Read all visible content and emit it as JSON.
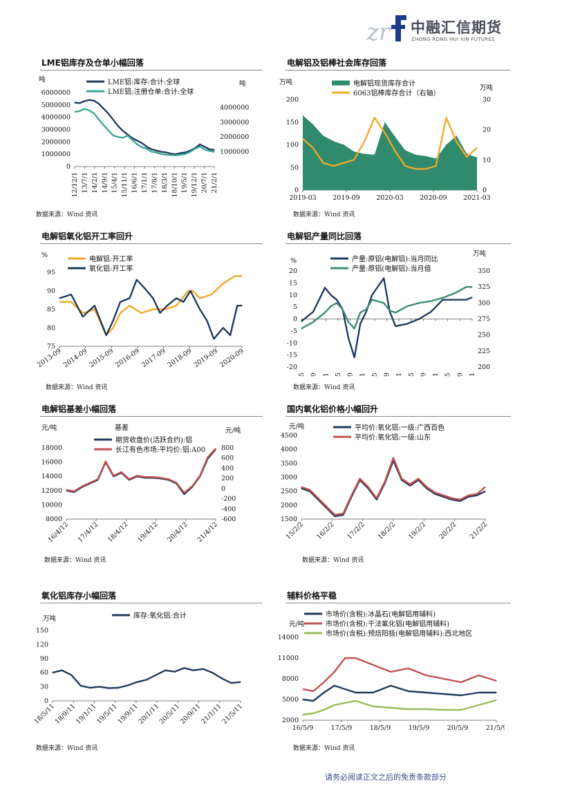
{
  "header": {
    "logo_cn": "中融汇信期货",
    "logo_en": "ZHONG RONG HUI XIN FUTURES"
  },
  "footer": {
    "text": "请务必阅读正文之后的免责条款部分"
  },
  "colors": {
    "navy": "#1f3a5c",
    "teal": "#3a8c74",
    "orange": "#f0a82a",
    "red": "#c0504d",
    "green": "#9bbb59"
  },
  "panels": {
    "p1": {
      "title": "LME铝库存及仓单小幅回落",
      "source": "数据来源：Wind 资讯"
    },
    "p2": {
      "title": "电解铝及铝棒社会库存回落",
      "source": "数据来源：Wind 资讯"
    },
    "p3": {
      "title": "电解铝氧化铝开工率回升",
      "source": "数据来源：Wind 资讯"
    },
    "p4": {
      "title": "电解铝产量同比回落",
      "source": "数据来源：Wind 资讯"
    },
    "p5": {
      "title": "电解铝基差小幅回落",
      "source": "数据来源：Wind 资讯"
    },
    "p6": {
      "title": "国内氧化铝价格小幅回升",
      "source": "数据来源：Wind 资讯"
    },
    "p7": {
      "title": "氧化铝库存小幅回落",
      "source": "数据来源：Wind 资讯"
    },
    "p8": {
      "title": "辅料价格平稳",
      "source": "数据来源：Wind 资讯"
    }
  },
  "chart_data": [
    {
      "id": "c1",
      "type": "line",
      "ylabel": "吨",
      "ylabel_right": "吨",
      "ylim": [
        0,
        6000000
      ],
      "yticks": [
        0,
        1000000,
        2000000,
        3000000,
        4000000,
        5000000,
        6000000
      ],
      "ylim_right": [
        0,
        5000000
      ],
      "yticks_right": [
        1000000,
        2000000,
        3000000,
        4000000
      ],
      "xticks": [
        "12/12/1",
        "13/7/1",
        "14/2/1",
        "14/9/1",
        "15/4/1",
        "15/11/1",
        "16/6/1",
        "17/1/1",
        "17/8/1",
        "18/3/1",
        "18/10/1",
        "19/5/1",
        "19/12/1",
        "20/7/1",
        "21/2/1"
      ],
      "series": [
        {
          "name": "LME铝:库存:合计:全球",
          "axis": "left",
          "color": "#1f3a5c",
          "x": [
            0,
            0.5,
            1,
            1.5,
            2,
            2.5,
            3,
            3.5,
            4,
            4.5,
            5,
            5.5,
            6,
            6.5,
            7,
            7.5,
            8,
            8.5,
            9,
            9.5,
            10,
            10.5,
            11,
            11.5,
            12,
            12.5,
            13,
            13.5,
            14,
            14.5
          ],
          "y": [
            5200000,
            5150000,
            5300000,
            5400000,
            5350000,
            5100000,
            4700000,
            4300000,
            3800000,
            3300000,
            2900000,
            2600000,
            2300000,
            2100000,
            1900000,
            1600000,
            1400000,
            1300000,
            1200000,
            1150000,
            1050000,
            1000000,
            1100000,
            1150000,
            1300000,
            1500000,
            1800000,
            1600000,
            1400000,
            1350000
          ]
        },
        {
          "name": "LME铝:注册仓单:合计:全球",
          "axis": "right",
          "color": "#3aa894",
          "x": [
            0,
            0.5,
            1,
            1.5,
            2,
            2.5,
            3,
            3.5,
            4,
            4.5,
            5,
            5.5,
            6,
            6.5,
            7,
            7.5,
            8,
            8.5,
            9,
            9.5,
            10,
            10.5,
            11,
            11.5,
            12,
            12.5,
            13,
            13.5,
            14,
            14.5
          ],
          "y": [
            3700000,
            3750000,
            3900000,
            3800000,
            3600000,
            3200000,
            2800000,
            2450000,
            2100000,
            2000000,
            1950000,
            2100000,
            1800000,
            1500000,
            1300000,
            1200000,
            1000000,
            950000,
            850000,
            800000,
            780000,
            760000,
            800000,
            850000,
            1000000,
            1200000,
            1350000,
            1150000,
            1050000,
            1000000
          ]
        }
      ]
    },
    {
      "id": "c2",
      "type": "area",
      "ylabel": "万吨",
      "ylabel_right": "万吨",
      "ylim": [
        0,
        200
      ],
      "yticks": [
        0,
        50,
        100,
        150,
        200
      ],
      "ylim_right": [
        0,
        30
      ],
      "yticks_right": [
        0,
        10,
        20,
        30
      ],
      "xticks": [
        "2019-03",
        "2019-09",
        "2020-03",
        "2020-09",
        "2021-03"
      ],
      "series": [
        {
          "name": "电解铝现货库存合计",
          "axis": "left",
          "color": "#2f8a6e",
          "x": [
            0,
            0.3,
            0.6,
            0.9,
            1.2,
            1.5,
            1.8,
            2.1,
            2.4,
            2.7,
            3.0,
            3.3,
            3.6,
            3.9,
            4.2,
            4.5,
            4.8,
            5.1
          ],
          "y": [
            165,
            145,
            120,
            108,
            100,
            85,
            80,
            78,
            150,
            118,
            88,
            78,
            75,
            70,
            100,
            120,
            80,
            72
          ]
        },
        {
          "name": "6063铝棒库存合计（右轴）",
          "axis": "right",
          "color": "#f0a82a",
          "x": [
            0,
            0.3,
            0.6,
            0.9,
            1.2,
            1.5,
            1.8,
            2.1,
            2.4,
            2.7,
            3.0,
            3.3,
            3.6,
            3.9,
            4.2,
            4.5,
            4.8,
            5.1
          ],
          "y": [
            17,
            14,
            9,
            8,
            9,
            10,
            16,
            24,
            19,
            13,
            8,
            7,
            7,
            8,
            24,
            16,
            11,
            14
          ]
        }
      ]
    },
    {
      "id": "c3",
      "type": "line",
      "ylabel": "%",
      "ylim": [
        75,
        95
      ],
      "yticks": [
        75,
        80,
        85,
        90,
        95
      ],
      "xticks": [
        "2013-09",
        "2014-09",
        "2015-09",
        "2016-09",
        "2017-09",
        "2018-09",
        "2019-09",
        "2020-09"
      ],
      "series": [
        {
          "name": "电解铝:开工率",
          "color": "#f0a82a",
          "x": [
            0,
            0.5,
            1,
            1.5,
            2,
            2.3,
            2.6,
            3,
            3.5,
            4,
            4.5,
            5,
            5.5,
            5.7,
            6,
            6.5,
            7,
            7.5,
            7.8
          ],
          "y": [
            87,
            87,
            84,
            85,
            78,
            80,
            84,
            86,
            84,
            85,
            85,
            86,
            90,
            90,
            88,
            89,
            92,
            94,
            94
          ]
        },
        {
          "name": "氧化铝:开工率",
          "color": "#1f3a5c",
          "x": [
            0,
            0.5,
            1,
            1.5,
            2,
            2.3,
            2.6,
            3,
            3.3,
            3.6,
            4,
            4.3,
            4.6,
            5,
            5.3,
            5.6,
            6,
            6.3,
            6.6,
            7,
            7.3,
            7.6,
            7.8
          ],
          "y": [
            88,
            89,
            83,
            86,
            78,
            82,
            87,
            88,
            93,
            91,
            88,
            84,
            86,
            88,
            87,
            90,
            85,
            82,
            77,
            80,
            78,
            86,
            86
          ]
        }
      ]
    },
    {
      "id": "c4",
      "type": "line",
      "ylabel": "%",
      "ylabel_right": "万吨",
      "ylim": [
        -20,
        20
      ],
      "yticks": [
        -20,
        -15,
        -10,
        -5,
        0,
        5,
        10,
        15,
        20
      ],
      "ylim_right": [
        200,
        350
      ],
      "yticks_right": [
        200,
        225,
        250,
        275,
        300,
        325,
        350
      ],
      "xticks": [
        "2016-05",
        "2016-09",
        "2017-01",
        "2017-05",
        "2017-09",
        "2018-01",
        "2018-05",
        "2018-09",
        "2019-01",
        "2019-05",
        "2019-09",
        "2020-01",
        "2020-05",
        "2020-09",
        "2021-01"
      ],
      "series": [
        {
          "name": "产量:原铝(电解铝):当月同比",
          "axis": "left",
          "color": "#1f3a5c",
          "x": [
            0,
            1,
            2,
            2.5,
            3,
            3.5,
            4,
            4.5,
            5,
            5.5,
            6,
            7,
            7.5,
            8,
            9,
            10,
            11,
            12,
            13,
            14,
            14.5
          ],
          "y": [
            -1,
            3,
            13,
            10,
            8,
            4,
            -8,
            -16,
            -2,
            3,
            10,
            17,
            3,
            -3,
            -2,
            0,
            3,
            8,
            8,
            8,
            9
          ]
        },
        {
          "name": "产量:原铝(电解铝):当月值",
          "axis": "right",
          "color": "#3a8c74",
          "x": [
            0,
            1,
            2,
            2.5,
            3,
            3.5,
            4,
            4.5,
            5,
            5.5,
            6,
            7,
            7.5,
            8,
            9,
            10,
            11,
            12,
            13,
            14,
            14.5
          ],
          "y": [
            260,
            270,
            285,
            295,
            300,
            290,
            270,
            260,
            285,
            290,
            305,
            300,
            288,
            285,
            295,
            300,
            303,
            308,
            315,
            325,
            325
          ]
        }
      ]
    },
    {
      "id": "c5",
      "type": "line",
      "ylabel": "元/吨",
      "ylabel_right": "元/吨",
      "annotation": "基差",
      "ylim": [
        8000,
        18000
      ],
      "yticks": [
        8000,
        10000,
        12000,
        14000,
        16000,
        18000
      ],
      "ylim_right": [
        -600,
        800
      ],
      "yticks_right": [
        800,
        600,
        400,
        200,
        0,
        -200,
        -400,
        -600
      ],
      "xticks": [
        "16/4/12",
        "17/4/12",
        "18/4/12",
        "19/4/12",
        "20/4/12",
        "21/4/12"
      ],
      "series": [
        {
          "name": "期货收盘价(活跃合约):铝",
          "color": "#1f3a5c",
          "x": [
            0,
            0.3,
            0.6,
            0.9,
            1.2,
            1.5,
            1.8,
            2.1,
            2.4,
            2.7,
            3.0,
            3.3,
            3.6,
            3.9,
            4.2,
            4.5,
            4.8,
            5.1,
            5.4,
            5.7
          ],
          "y": [
            12000,
            11800,
            12500,
            13000,
            13500,
            16000,
            14000,
            14500,
            13500,
            14000,
            13800,
            13800,
            13700,
            13500,
            13000,
            11500,
            12500,
            14000,
            16500,
            17800
          ]
        },
        {
          "name": "长江有色市场:平均价:铝:A00",
          "color": "#c0504d",
          "x": [
            0,
            0.3,
            0.6,
            0.9,
            1.2,
            1.5,
            1.8,
            2.1,
            2.4,
            2.7,
            3.0,
            3.3,
            3.6,
            3.9,
            4.2,
            4.5,
            4.8,
            5.1,
            5.4,
            5.7
          ],
          "y": [
            12100,
            11900,
            12600,
            13100,
            13600,
            16100,
            14100,
            14600,
            13600,
            14100,
            13900,
            13900,
            13800,
            13600,
            13100,
            11700,
            12600,
            14100,
            16700,
            17900
          ]
        }
      ]
    },
    {
      "id": "c6",
      "type": "line",
      "ylabel": "元/吨",
      "ylim": [
        1500,
        4500
      ],
      "yticks": [
        1500,
        2000,
        2500,
        3000,
        3500,
        4000,
        4500
      ],
      "xticks": [
        "15/2/2",
        "16/2/2",
        "17/2/2",
        "18/2/2",
        "19/2/2",
        "20/2/2",
        "21/2/2"
      ],
      "series": [
        {
          "name": "平均价:氧化铝:一级:广西百色",
          "color": "#1f3a5c",
          "x": [
            0,
            0.3,
            0.6,
            0.9,
            1.2,
            1.5,
            1.8,
            2.1,
            2.4,
            2.7,
            3.0,
            3.3,
            3.6,
            3.9,
            4.2,
            4.5,
            4.8,
            5.1,
            5.4,
            5.7,
            6.0,
            6.3,
            6.6
          ],
          "y": [
            2600,
            2500,
            2200,
            1900,
            1600,
            1650,
            2300,
            2900,
            2600,
            2200,
            2800,
            3600,
            2900,
            2700,
            2900,
            2600,
            2400,
            2300,
            2200,
            2150,
            2300,
            2350,
            2500
          ]
        },
        {
          "name": "平均价:氧化铝:一级:山东",
          "color": "#c0504d",
          "x": [
            0,
            0.3,
            0.6,
            0.9,
            1.2,
            1.5,
            1.8,
            2.1,
            2.4,
            2.7,
            3.0,
            3.3,
            3.6,
            3.9,
            4.2,
            4.5,
            4.8,
            5.1,
            5.4,
            5.7,
            6.0,
            6.3,
            6.6
          ],
          "y": [
            2650,
            2550,
            2250,
            1950,
            1650,
            1700,
            2350,
            2950,
            2650,
            2250,
            2850,
            3700,
            2950,
            2750,
            2950,
            2650,
            2450,
            2350,
            2250,
            2200,
            2350,
            2400,
            2650
          ]
        }
      ]
    },
    {
      "id": "c7",
      "type": "line",
      "ylabel": "万吨",
      "ylim": [
        0,
        150
      ],
      "yticks": [
        0,
        30,
        60,
        90,
        120,
        150
      ],
      "xticks": [
        "18/5/11",
        "18/9/11",
        "19/1/11",
        "19/5/11",
        "19/9/11",
        "20/1/11",
        "20/5/11",
        "20/9/11",
        "21/1/11",
        "21/5/11"
      ],
      "series": [
        {
          "name": "库存:氧化铝:合计",
          "color": "#1f3a5c",
          "x": [
            0,
            0.5,
            1,
            1.5,
            2,
            2.5,
            3,
            3.5,
            4,
            4.5,
            5,
            5.5,
            6,
            6.5,
            7,
            7.5,
            8,
            8.5,
            9,
            9.5,
            10
          ],
          "y": [
            60,
            65,
            55,
            32,
            28,
            30,
            27,
            28,
            33,
            40,
            45,
            55,
            65,
            62,
            70,
            65,
            68,
            60,
            48,
            38,
            40
          ]
        }
      ]
    },
    {
      "id": "c8",
      "type": "line",
      "ylabel": "元/吨",
      "ylim": [
        2000,
        14000
      ],
      "yticks": [
        2000,
        5000,
        8000,
        11000,
        14000
      ],
      "xticks": [
        "16/5/9",
        "17/5/9",
        "18/5/9",
        "19/5/9",
        "20/5/9",
        "21/5/9"
      ],
      "series": [
        {
          "name": "市场价(含税):冰晶石(电解铝用辅料)",
          "color": "#1f3a5c",
          "x": [
            0,
            0.3,
            0.6,
            0.9,
            1.2,
            1.5,
            2,
            2.5,
            3,
            3.5,
            4,
            4.5,
            5,
            5.5
          ],
          "y": [
            5000,
            4800,
            6000,
            7000,
            6500,
            6000,
            6000,
            7000,
            6200,
            6000,
            5800,
            5600,
            6000,
            6000
          ]
        },
        {
          "name": "市场价(含税):干法氟化铝(电解铝用辅料)",
          "color": "#c0504d",
          "x": [
            0,
            0.3,
            0.6,
            0.9,
            1.2,
            1.5,
            2,
            2.5,
            3,
            3.5,
            4,
            4.5,
            5,
            5.5
          ],
          "y": [
            6500,
            6200,
            7500,
            9000,
            11000,
            11000,
            10000,
            9000,
            9500,
            8500,
            8000,
            7500,
            8500,
            7700
          ]
        },
        {
          "name": "市场价(含税):预焙阳极(电解铝用辅料):西北地区",
          "color": "#9bbb59",
          "x": [
            0,
            0.3,
            0.6,
            0.9,
            1.2,
            1.5,
            2,
            2.5,
            3,
            3.5,
            4,
            4.5,
            5,
            5.5
          ],
          "y": [
            2800,
            3000,
            3500,
            4200,
            4500,
            4800,
            4000,
            3800,
            3600,
            3600,
            3500,
            3500,
            4200,
            4900
          ]
        }
      ]
    }
  ]
}
